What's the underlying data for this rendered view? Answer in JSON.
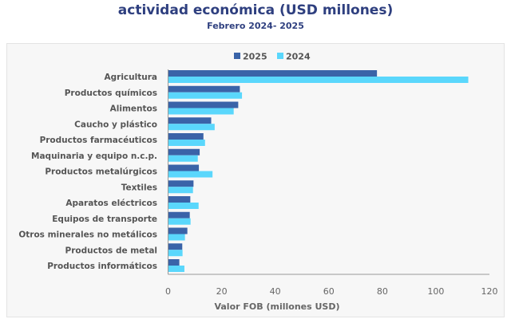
{
  "title": "actividad económica (USD millones)",
  "subtitle": "Febrero 2024- 2025",
  "colors": {
    "2025": "#3a63a8",
    "2024": "#5ad7fc"
  },
  "chart_data": {
    "type": "bar",
    "orientation": "horizontal",
    "categories": [
      "Agricultura",
      "Productos químicos",
      "Alimentos",
      "Caucho y plástico",
      "Productos farmacéuticos",
      "Maquinaria y equipo n.c.p.",
      "Productos metalúrgicos",
      "Textiles",
      "Aparatos eléctricos",
      "Equipos de transporte",
      "Otros minerales no metálicos",
      "Productos de metal",
      "Productos informáticos"
    ],
    "series": [
      {
        "name": "2025",
        "values": [
          78.0,
          26.8,
          26.2,
          16.1,
          13.2,
          11.8,
          11.5,
          9.5,
          8.3,
          8.1,
          7.2,
          5.3,
          4.2
        ]
      },
      {
        "name": "2024",
        "values": [
          112.1,
          27.6,
          24.5,
          17.4,
          13.8,
          11.1,
          16.6,
          9.3,
          11.4,
          8.4,
          6.3,
          5.4,
          6.1
        ]
      }
    ],
    "xlabel": "Valor FOB (millones USD)",
    "xlim": [
      0,
      120
    ],
    "xticks": [
      "0",
      "20",
      "40",
      "60",
      "80",
      "100",
      "120"
    ],
    "grid": false,
    "legend": "top"
  }
}
